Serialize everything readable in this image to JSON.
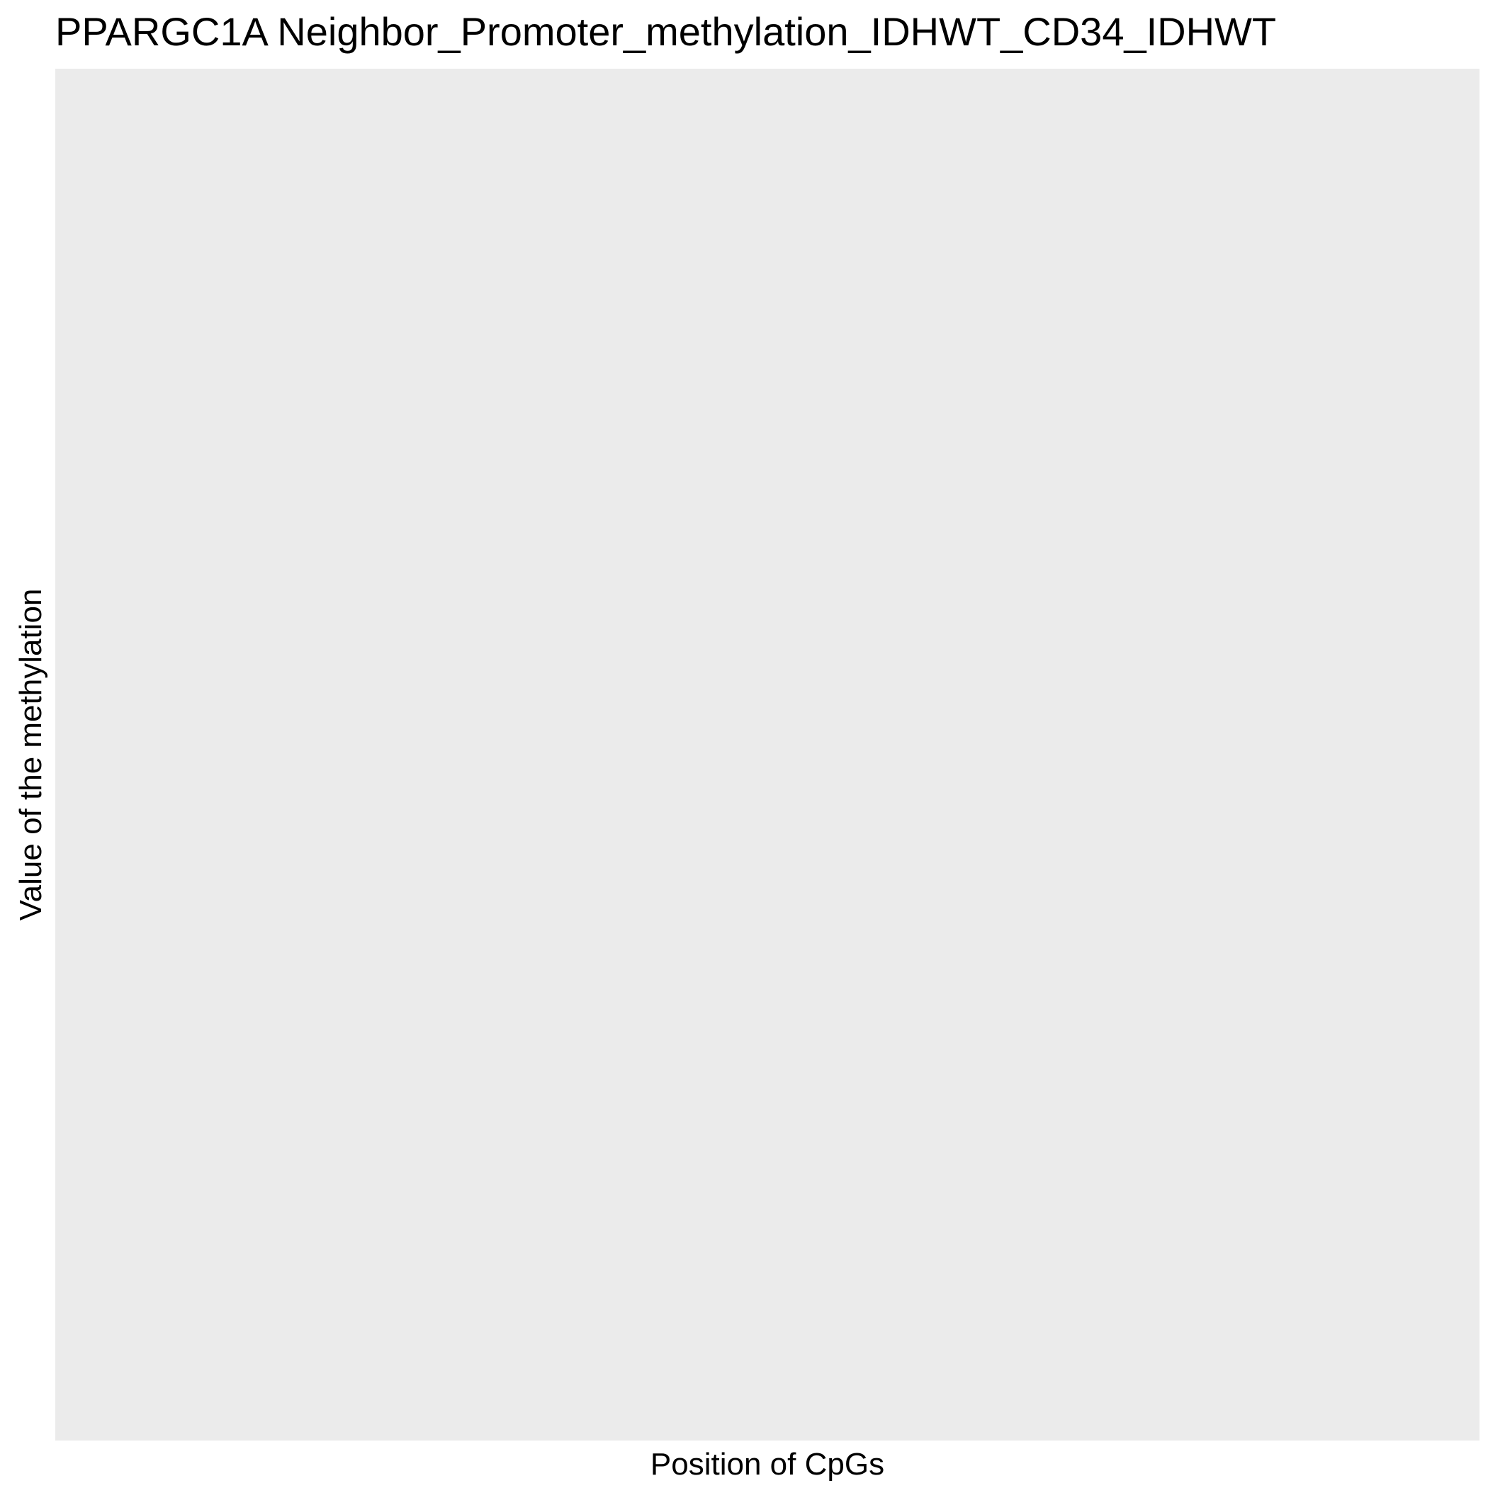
{
  "chart_data": {
    "type": "line",
    "title": "PPARGC1A Neighbor_Promoter_methylation_IDHWT_CD34_IDHWT",
    "xlabel": "Position of CpGs",
    "ylabel": "Value of the methylation",
    "x": [],
    "series": [],
    "grid": false,
    "legend": "none",
    "panel_color": "#ebebeb"
  }
}
